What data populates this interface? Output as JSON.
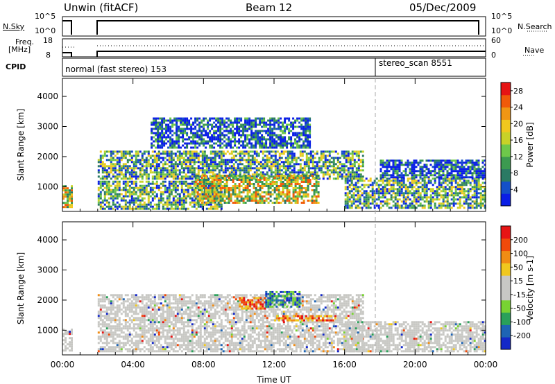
{
  "header": {
    "station": "Unwin (fitACF)",
    "beam": "Beam 12",
    "date": "05/Dec/2009"
  },
  "strip_panels": {
    "nsky": {
      "label": "N.Sky",
      "ticks": [
        "10^5",
        "10^0"
      ]
    },
    "nsearch": {
      "label": "N.Search",
      "ticks": [
        "10^5",
        "10^0"
      ]
    },
    "freq": {
      "label_line1": "Freq.",
      "label_line2": "[MHz]",
      "ticks": [
        "18",
        "8"
      ]
    },
    "nave": {
      "label": "Nave",
      "ticks": [
        "60",
        "0"
      ]
    },
    "cpid": {
      "label": "CPID",
      "modes": [
        {
          "name": "normal (fast stereo) 153",
          "start_hour": 0
        },
        {
          "name": "stereo_scan 8551",
          "start_hour": 18
        }
      ]
    }
  },
  "chart_data": [
    {
      "type": "heatmap",
      "title": "",
      "parameter": "Power",
      "ylabel": "Slant Range [km]",
      "xlabel": "",
      "ylim": [
        180,
        4600
      ],
      "xlim_hours": [
        0,
        24
      ],
      "y_ticks": [
        1000,
        2000,
        3000,
        4000
      ],
      "colorbar": {
        "label": "Power [dB]",
        "ticks": [
          4,
          8,
          12,
          16,
          20,
          24,
          28
        ],
        "range": [
          0,
          30
        ],
        "colors": [
          "#0a1ee6",
          "#1450c8",
          "#2a7a64",
          "#3c9a50",
          "#6ec84a",
          "#c8d228",
          "#f0c81e",
          "#f09614",
          "#f05a0a",
          "#e61414"
        ]
      },
      "echo_regions": [
        {
          "t0": 0.0,
          "t1": 0.55,
          "r0": 300,
          "r1": 1050,
          "level": "high"
        },
        {
          "t0": 2.0,
          "t1": 9.0,
          "r0": 300,
          "r1": 1200,
          "level": "medium"
        },
        {
          "t0": 2.0,
          "t1": 17.0,
          "r0": 1300,
          "r1": 2200,
          "level": "medium"
        },
        {
          "t0": 7.5,
          "t1": 14.5,
          "r0": 500,
          "r1": 1400,
          "level": "high"
        },
        {
          "t0": 5.0,
          "t1": 14.0,
          "r0": 2300,
          "r1": 3300,
          "level": "low"
        },
        {
          "t0": 16.0,
          "t1": 24.0,
          "r0": 300,
          "r1": 1300,
          "level": "medium"
        },
        {
          "t0": 18.0,
          "t1": 24.0,
          "r0": 1300,
          "r1": 1900,
          "level": "low"
        }
      ]
    },
    {
      "type": "heatmap",
      "title": "",
      "parameter": "Velocity",
      "ylabel": "Slant Range [km]",
      "xlabel": "Time UT",
      "ylim": [
        180,
        4600
      ],
      "xlim_hours": [
        0,
        24
      ],
      "y_ticks": [
        1000,
        2000,
        3000,
        4000
      ],
      "x_tick_labels": [
        "00:00",
        "04:00",
        "08:00",
        "12:00",
        "16:00",
        "20:00",
        "00:00"
      ],
      "colorbar": {
        "label": "Velocity [m s-1]",
        "ticks": [
          200,
          100,
          50,
          15,
          -15,
          -50,
          -100,
          -200
        ],
        "colors": [
          "#1428c8",
          "#1e64b4",
          "#2aa05a",
          "#78d232",
          "#c8c8c4",
          "#c8c8c4",
          "#f0c81e",
          "#f08c14",
          "#f04a0a",
          "#e61414"
        ]
      },
      "echo_regions": [
        {
          "t0": 0.0,
          "t1": 0.55,
          "r0": 300,
          "r1": 1050,
          "level": "neutral"
        },
        {
          "t0": 2.0,
          "t1": 17.0,
          "r0": 300,
          "r1": 2200,
          "level": "neutral"
        },
        {
          "t0": 10.0,
          "t1": 11.5,
          "r0": 1700,
          "r1": 2100,
          "level": "away"
        },
        {
          "t0": 12.0,
          "t1": 15.5,
          "r0": 1300,
          "r1": 1500,
          "level": "away"
        },
        {
          "t0": 11.5,
          "t1": 13.5,
          "r0": 1800,
          "r1": 2300,
          "level": "toward"
        },
        {
          "t0": 16.0,
          "t1": 24.0,
          "r0": 300,
          "r1": 1300,
          "level": "neutral"
        }
      ]
    }
  ]
}
